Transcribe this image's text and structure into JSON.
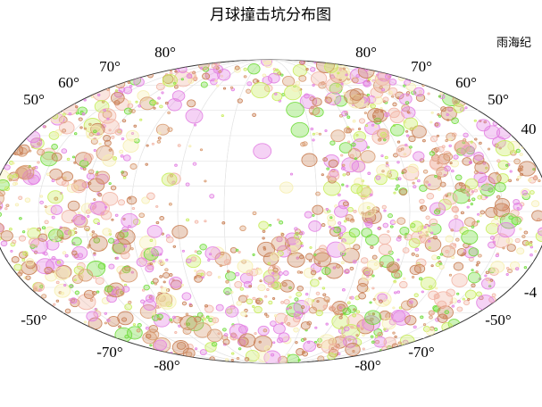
{
  "title": "月球撞击坑分布图",
  "legend": {
    "label": "雨海纪"
  },
  "latitude_labels": {
    "top_left": [
      "80°",
      "70°",
      "60°",
      "50°"
    ],
    "top_right": [
      "80°",
      "70°",
      "60°",
      "50°",
      "40"
    ],
    "bottom_left": [
      "-50°",
      "-70°",
      "-80°"
    ],
    "bottom_right": [
      "-80°",
      "-70°",
      "-50°",
      "-4"
    ]
  }
}
